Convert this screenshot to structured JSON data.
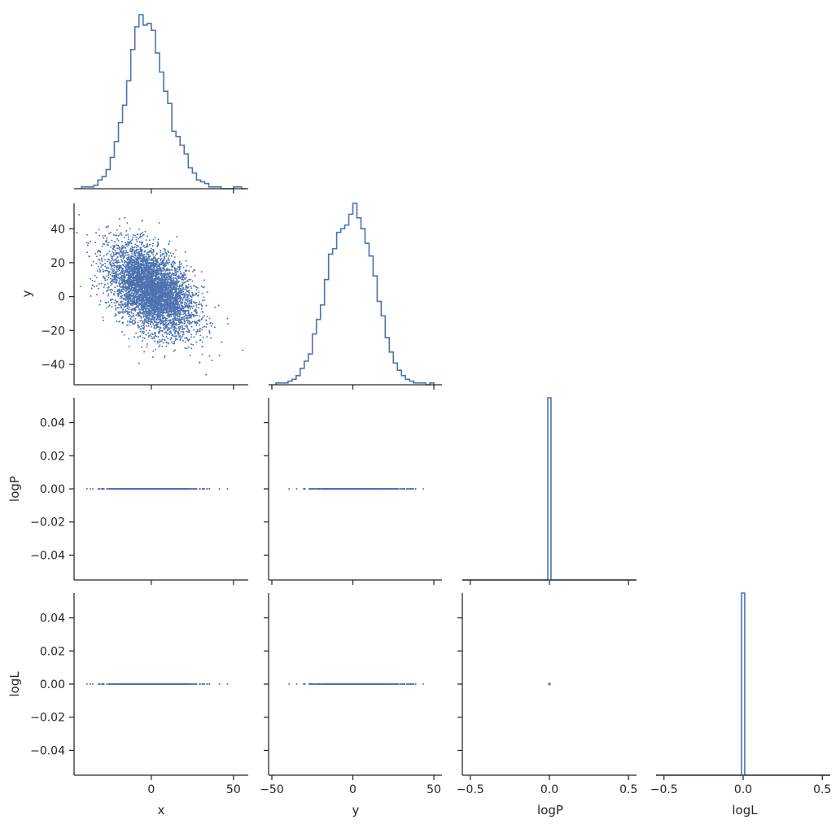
{
  "colors": {
    "series": "#4c72b0",
    "axis": "#262626",
    "background": "#ffffff"
  },
  "chart_data": {
    "type": "corner",
    "variables": [
      "x",
      "y",
      "logP",
      "logL"
    ],
    "axis_labels": {
      "x": "x",
      "y": "y",
      "logP": "logP",
      "logL": "logL"
    },
    "ranges": {
      "x": [
        -47,
        59
      ],
      "y": [
        -52,
        55
      ],
      "logP": [
        -0.55,
        0.55
      ],
      "logL": [
        -0.55,
        0.55
      ],
      "logP_vertical": [
        -0.055,
        0.055
      ],
      "logL_vertical": [
        -0.055,
        0.055
      ]
    },
    "tick_labels": {
      "x": [
        "0",
        "50"
      ],
      "y_bottom": [
        "−50",
        "0",
        "50"
      ],
      "y_left": [
        "−40",
        "−20",
        "0",
        "20",
        "40"
      ],
      "logP_bottom": [
        "−0.5",
        "0.0",
        "0.5"
      ],
      "logL_bottom": [
        "−0.5",
        "0.0",
        "0.5"
      ],
      "logP_left": [
        "−0.04",
        "−0.02",
        "0.00",
        "0.02",
        "0.04"
      ],
      "logL_left": [
        "−0.04",
        "−0.02",
        "0.00",
        "0.02",
        "0.04"
      ]
    },
    "tick_values": {
      "x": [
        0,
        50
      ],
      "y_bottom": [
        -50,
        0,
        50
      ],
      "y_left": [
        -40,
        -20,
        0,
        20,
        40
      ],
      "log_bottom": [
        -0.5,
        0.0,
        0.5
      ],
      "log_left": [
        -0.04,
        -0.02,
        0.0,
        0.02,
        0.04
      ]
    },
    "histograms": {
      "x": {
        "bin_edges": [
          -42.5,
          -40,
          -37.5,
          -35,
          -32.5,
          -30,
          -27.5,
          -25,
          -22.5,
          -20,
          -17.5,
          -15,
          -12.5,
          -10,
          -7.5,
          -5,
          -2.5,
          0,
          2.5,
          5,
          7.5,
          10,
          12.5,
          15,
          17.5,
          20,
          22.5,
          25,
          27.5,
          30,
          32.5,
          35,
          37.5,
          40,
          42.5,
          45,
          47.5,
          50,
          52.5,
          55,
          57.5
        ],
        "counts": [
          1,
          1,
          1,
          2,
          5,
          7,
          11,
          18,
          27,
          38,
          48,
          62,
          80,
          93,
          100,
          94,
          95,
          91,
          78,
          67,
          56,
          49,
          33,
          30,
          25,
          20,
          12,
          9,
          5,
          4,
          3,
          1,
          1,
          1,
          0,
          0,
          0,
          1,
          1,
          0
        ]
      },
      "y": {
        "bin_edges": [
          -47.5,
          -45,
          -42.5,
          -40,
          -37.5,
          -35,
          -32.5,
          -30,
          -27.5,
          -25,
          -22.5,
          -20,
          -17.5,
          -15,
          -12.5,
          -10,
          -7.5,
          -5,
          -2.5,
          0,
          2.5,
          5,
          7.5,
          10,
          12.5,
          15,
          17.5,
          20,
          22.5,
          25,
          27.5,
          30,
          32.5,
          35,
          37.5,
          40,
          42.5,
          45,
          47.5,
          50
        ],
        "counts": [
          1,
          1,
          1,
          2,
          3,
          5,
          9,
          13,
          17,
          28,
          36,
          44,
          58,
          72,
          75,
          84,
          86,
          88,
          94,
          100,
          92,
          86,
          78,
          71,
          60,
          46,
          38,
          26,
          18,
          12,
          8,
          5,
          3,
          2,
          1,
          1,
          1,
          0,
          1
        ]
      },
      "logP": {
        "bin_edges": [
          -0.55,
          -0.01,
          0.01,
          0.55
        ],
        "counts": [
          0,
          1,
          0
        ]
      },
      "logL": {
        "bin_edges": [
          -0.55,
          -0.01,
          0.01,
          0.55
        ],
        "counts": [
          0,
          1,
          0
        ]
      }
    },
    "scatter": {
      "n_points": 5000,
      "x_mean": 0,
      "x_std": 13,
      "y_mean": 4,
      "y_std": 13,
      "correlation": -0.45,
      "logP_value": 0.0,
      "logL_value": 0.0
    },
    "grid": false,
    "legend": "none"
  }
}
